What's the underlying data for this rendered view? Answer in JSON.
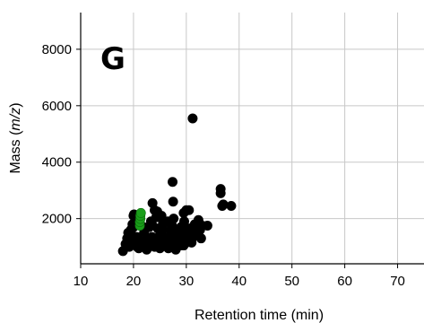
{
  "chart_data": {
    "type": "scatter",
    "panel_label": "G",
    "xlabel": "Retention time (min)",
    "ylabel_prefix": "Mass (",
    "ylabel_italic": "m/z",
    "ylabel_suffix": ")",
    "xlim": [
      10,
      75
    ],
    "ylim": [
      400,
      9300
    ],
    "xticks": [
      10,
      20,
      30,
      40,
      50,
      60,
      70
    ],
    "yticks": [
      2000,
      4000,
      6000,
      8000
    ],
    "grid": true,
    "colors": {
      "black_points": "#000000",
      "green_points": "#1a9e1a",
      "grid": "#c8c8c8"
    },
    "series": [
      {
        "color": "black",
        "x": [
          18.0,
          18.5,
          18.8,
          19.0,
          19.2,
          19.5,
          19.8,
          20.0,
          20.2,
          20.5,
          20.8,
          19.5,
          19.8,
          20.0,
          20.3,
          20.6,
          21.0,
          21.5,
          22.0,
          22.5,
          22.8,
          23.0,
          23.3,
          23.6,
          24.0,
          24.3,
          24.6,
          25.0,
          25.3,
          25.6,
          26.0,
          26.3,
          26.6,
          27.0,
          27.3,
          27.6,
          28.0,
          28.3,
          28.6,
          29.0,
          29.3,
          29.6,
          30.0,
          30.3,
          30.6,
          31.0,
          31.3,
          31.6,
          32.0,
          32.3,
          32.6,
          33.0,
          34.0,
          22.0,
          22.5,
          23.0,
          23.5,
          24.0,
          24.5,
          25.0,
          25.5,
          26.0,
          26.5,
          27.0,
          27.5,
          28.0,
          28.5,
          29.0,
          29.5,
          30.0,
          30.5,
          31.0,
          31.5,
          32.0,
          23.5,
          24.5,
          26.5,
          27.5,
          29.5,
          30.5,
          19.3,
          20.7,
          21.9,
          24.2,
          25.4,
          26.8,
          28.2,
          29.8,
          31.2,
          32.8,
          22.2,
          25.8,
          28.8,
          30.2,
          31.5,
          27.4,
          36.5,
          36.5,
          37.0,
          38.5,
          36.8,
          20.1
        ],
        "y": [
          850,
          1100,
          1300,
          1500,
          1000,
          1200,
          1400,
          1700,
          1150,
          1050,
          1250,
          1600,
          1800,
          2100,
          1900,
          1350,
          950,
          1150,
          1500,
          1000,
          1250,
          1700,
          1900,
          2550,
          2300,
          2050,
          1650,
          1400,
          2100,
          1850,
          1150,
          1300,
          950,
          1600,
          1750,
          2000,
          1200,
          1400,
          1550,
          1700,
          1250,
          1900,
          2300,
          1500,
          1650,
          1150,
          1350,
          1800,
          1450,
          1950,
          1600,
          1750,
          1750,
          1200,
          900,
          1050,
          1350,
          1000,
          1150,
          950,
          1600,
          1250,
          1050,
          1400,
          1100,
          900,
          1300,
          1500,
          1050,
          1150,
          1400,
          1250,
          1500,
          1600,
          1800,
          2250,
          1900,
          2600,
          2200,
          2300,
          1200,
          1000,
          1700,
          1200,
          1400,
          1350,
          1600,
          1150,
          1450,
          1300,
          1100,
          1850,
          1050,
          1250,
          1700,
          3300,
          2900,
          3050,
          2500,
          2450,
          2450,
          2150
        ],
        "x_extra": [
          31.2
        ],
        "y_extra": [
          5550
        ]
      },
      {
        "color": "green",
        "x": [
          21.2,
          21.2,
          21.3,
          21.3,
          21.4
        ],
        "y": [
          1750,
          1880,
          1990,
          2100,
          2200
        ]
      }
    ]
  }
}
